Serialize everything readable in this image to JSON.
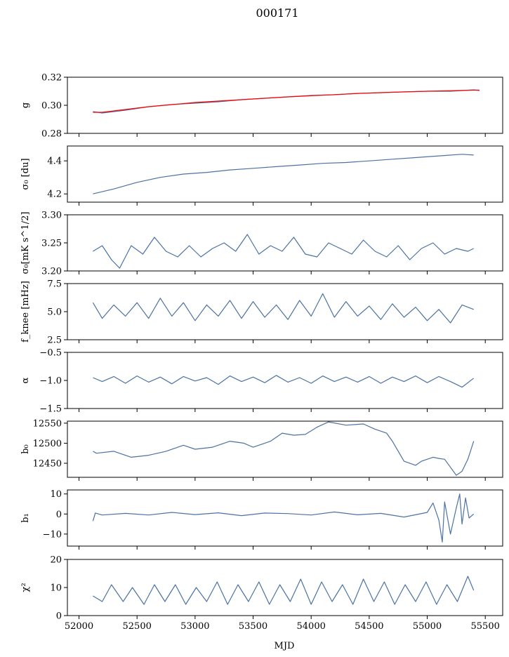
{
  "figure": {
    "title": "000171",
    "xlabel": "MJD",
    "xlim": [
      51900,
      55650
    ],
    "xticks": [
      52000,
      52500,
      53000,
      53500,
      54000,
      54500,
      55000,
      55500
    ],
    "colors": {
      "main": "#4c72a4",
      "fit": "#ff0000"
    }
  },
  "chart_data": [
    {
      "type": "line",
      "ylabel": "g",
      "ylim": [
        0.28,
        0.32
      ],
      "yticks": [
        0.28,
        0.3,
        0.32
      ],
      "ytick_labels": [
        "0.28",
        "0.30",
        "0.32"
      ],
      "grid": false,
      "series": [
        {
          "color": "#4c72a4",
          "x": [
            52120,
            52200,
            52400,
            52600,
            52800,
            53000,
            53200,
            53400,
            53600,
            53800,
            54000,
            54200,
            54400,
            54600,
            54800,
            55000,
            55200,
            55400,
            55450
          ],
          "y": [
            0.2955,
            0.2945,
            0.2965,
            0.299,
            0.3005,
            0.3015,
            0.3025,
            0.304,
            0.305,
            0.306,
            0.307,
            0.3075,
            0.3085,
            0.309,
            0.3095,
            0.31,
            0.31,
            0.311,
            0.3105
          ]
        },
        {
          "color": "#ff0000",
          "x": [
            52120,
            52200,
            52400,
            52600,
            52800,
            53000,
            53200,
            53400,
            53600,
            53800,
            54000,
            54200,
            54400,
            54600,
            54800,
            55000,
            55200,
            55400,
            55450
          ],
          "y": [
            0.295,
            0.295,
            0.297,
            0.299,
            0.3005,
            0.302,
            0.303,
            0.304,
            0.305,
            0.306,
            0.3068,
            0.3076,
            0.3084,
            0.309,
            0.3096,
            0.31,
            0.3104,
            0.3108,
            0.3108
          ]
        }
      ]
    },
    {
      "type": "line",
      "ylabel": "σ₀ [du]",
      "ylim": [
        4.15,
        4.49
      ],
      "yticks": [
        4.2,
        4.4
      ],
      "ytick_labels": [
        "4.2",
        "4.4"
      ],
      "grid": false,
      "series": [
        {
          "color": "#4c72a4",
          "x": [
            52120,
            52300,
            52500,
            52700,
            52900,
            53100,
            53300,
            53500,
            53700,
            53900,
            54100,
            54300,
            54500,
            54700,
            54900,
            55100,
            55300,
            55400
          ],
          "y": [
            4.2,
            4.23,
            4.27,
            4.3,
            4.32,
            4.33,
            4.345,
            4.355,
            4.365,
            4.375,
            4.385,
            4.39,
            4.4,
            4.41,
            4.42,
            4.43,
            4.44,
            4.435
          ]
        }
      ]
    },
    {
      "type": "line",
      "ylabel": "σ₀[mK s^1/2]",
      "ylim": [
        3.2,
        3.3
      ],
      "yticks": [
        3.2,
        3.25,
        3.3
      ],
      "ytick_labels": [
        "3.20",
        "3.25",
        "3.30"
      ],
      "grid": false,
      "series": [
        {
          "color": "#4c72a4",
          "x": [
            52120,
            52200,
            52280,
            52350,
            52450,
            52550,
            52650,
            52750,
            52850,
            52950,
            53050,
            53150,
            53250,
            53350,
            53450,
            53550,
            53650,
            53750,
            53850,
            53950,
            54050,
            54150,
            54250,
            54350,
            54450,
            54550,
            54650,
            54750,
            54850,
            54950,
            55050,
            55150,
            55250,
            55350,
            55400
          ],
          "y": [
            3.235,
            3.245,
            3.22,
            3.205,
            3.245,
            3.23,
            3.26,
            3.235,
            3.225,
            3.245,
            3.225,
            3.24,
            3.25,
            3.235,
            3.265,
            3.23,
            3.245,
            3.235,
            3.26,
            3.23,
            3.225,
            3.25,
            3.24,
            3.23,
            3.255,
            3.235,
            3.225,
            3.245,
            3.22,
            3.24,
            3.25,
            3.23,
            3.24,
            3.235,
            3.24
          ]
        }
      ]
    },
    {
      "type": "line",
      "ylabel": "f_knee [mHz]",
      "ylim": [
        2.5,
        7.5
      ],
      "yticks": [
        2.5,
        5.0,
        7.5
      ],
      "ytick_labels": [
        "2.5",
        "5.0",
        "7.5"
      ],
      "grid": false,
      "series": [
        {
          "color": "#4c72a4",
          "x": [
            52120,
            52200,
            52300,
            52400,
            52500,
            52600,
            52700,
            52800,
            52900,
            53000,
            53100,
            53200,
            53300,
            53400,
            53500,
            53600,
            53700,
            53800,
            53900,
            54000,
            54100,
            54200,
            54300,
            54400,
            54500,
            54600,
            54700,
            54800,
            54900,
            55000,
            55100,
            55200,
            55300,
            55400
          ],
          "y": [
            5.8,
            4.4,
            5.6,
            4.6,
            5.8,
            4.4,
            6.2,
            4.6,
            5.8,
            4.2,
            5.6,
            4.6,
            6.0,
            4.4,
            5.9,
            4.5,
            5.6,
            4.3,
            6.0,
            4.6,
            6.6,
            4.5,
            5.9,
            4.6,
            5.5,
            4.3,
            5.7,
            4.5,
            5.4,
            4.2,
            5.2,
            4.0,
            5.6,
            5.2
          ]
        }
      ]
    },
    {
      "type": "line",
      "ylabel": "α",
      "ylim": [
        -1.5,
        -0.5
      ],
      "yticks": [
        -1.5,
        -1.0,
        -0.5
      ],
      "ytick_labels": [
        "−1.5",
        "−1.0",
        "−0.5"
      ],
      "grid": false,
      "series": [
        {
          "color": "#4c72a4",
          "x": [
            52120,
            52200,
            52300,
            52400,
            52500,
            52600,
            52700,
            52800,
            52900,
            53000,
            53100,
            53200,
            53300,
            53400,
            53500,
            53600,
            53700,
            53800,
            53900,
            54000,
            54100,
            54200,
            54300,
            54400,
            54500,
            54600,
            54700,
            54800,
            54900,
            55000,
            55100,
            55200,
            55300,
            55400
          ],
          "y": [
            -0.95,
            -1.02,
            -0.93,
            -1.05,
            -0.92,
            -1.03,
            -0.94,
            -1.06,
            -0.93,
            -1.01,
            -0.95,
            -1.07,
            -0.92,
            -1.02,
            -0.94,
            -1.04,
            -0.91,
            -1.03,
            -0.95,
            -1.05,
            -0.92,
            -1.02,
            -0.94,
            -1.03,
            -0.93,
            -1.05,
            -0.94,
            -1.02,
            -0.92,
            -1.04,
            -0.93,
            -1.02,
            -1.12,
            -0.96
          ]
        }
      ]
    },
    {
      "type": "line",
      "ylabel": "b₀",
      "ylim": [
        12415,
        12555
      ],
      "yticks": [
        12450,
        12500,
        12550
      ],
      "ytick_labels": [
        "12450",
        "12500",
        "12550"
      ],
      "grid": false,
      "series": [
        {
          "color": "#4c72a4",
          "x": [
            52120,
            52150,
            52300,
            52450,
            52600,
            52750,
            52900,
            53000,
            53150,
            53300,
            53420,
            53500,
            53650,
            53750,
            53850,
            53950,
            54050,
            54150,
            54300,
            54450,
            54550,
            54650,
            54700,
            54800,
            54900,
            54950,
            55050,
            55100,
            55150,
            55200,
            55250,
            55300,
            55350,
            55400
          ],
          "y": [
            12480,
            12475,
            12480,
            12465,
            12470,
            12480,
            12495,
            12485,
            12490,
            12505,
            12500,
            12490,
            12505,
            12525,
            12520,
            12522,
            12540,
            12553,
            12545,
            12548,
            12535,
            12525,
            12505,
            12455,
            12445,
            12455,
            12465,
            12462,
            12460,
            12440,
            12420,
            12430,
            12460,
            12505
          ]
        }
      ]
    },
    {
      "type": "line",
      "ylabel": "b₁",
      "ylim": [
        -16,
        12
      ],
      "yticks": [
        -10,
        0,
        10
      ],
      "ytick_labels": [
        "−10",
        "0",
        "10"
      ],
      "grid": false,
      "series": [
        {
          "color": "#4c72a4",
          "x": [
            52120,
            52140,
            52200,
            52400,
            52600,
            52800,
            53000,
            53200,
            53400,
            53600,
            53800,
            54000,
            54200,
            54400,
            54600,
            54800,
            55000,
            55050,
            55100,
            55130,
            55150,
            55200,
            55250,
            55280,
            55300,
            55330,
            55360,
            55400
          ],
          "y": [
            -3.5,
            0.5,
            -0.5,
            0.3,
            -0.5,
            0.8,
            -0.3,
            0.6,
            -0.8,
            0.5,
            0.2,
            -0.5,
            1.0,
            -0.4,
            0.3,
            -1.5,
            0.8,
            5.5,
            -3,
            -14,
            6,
            -10,
            3,
            10,
            -5,
            8,
            -2,
            0
          ]
        }
      ]
    },
    {
      "type": "line",
      "ylabel": "χ²",
      "ylim": [
        0,
        20
      ],
      "yticks": [
        0,
        10,
        20
      ],
      "ytick_labels": [
        "0",
        "10",
        "20"
      ],
      "grid": false,
      "series": [
        {
          "color": "#4c72a4",
          "x": [
            52120,
            52200,
            52280,
            52380,
            52460,
            52560,
            52650,
            52740,
            52830,
            52920,
            53010,
            53100,
            53190,
            53280,
            53370,
            53460,
            53550,
            53640,
            53730,
            53820,
            53910,
            54000,
            54090,
            54180,
            54270,
            54360,
            54450,
            54540,
            54630,
            54720,
            54810,
            54900,
            54990,
            55080,
            55170,
            55260,
            55350,
            55400
          ],
          "y": [
            7,
            5,
            11,
            5,
            10,
            4,
            11,
            5,
            11,
            4,
            10,
            5,
            12,
            4,
            11,
            5,
            12,
            4,
            11,
            5,
            13,
            4,
            12,
            5,
            11,
            4,
            13,
            5,
            12,
            4,
            11,
            5,
            12,
            4,
            11,
            5,
            14,
            9
          ]
        }
      ]
    }
  ]
}
